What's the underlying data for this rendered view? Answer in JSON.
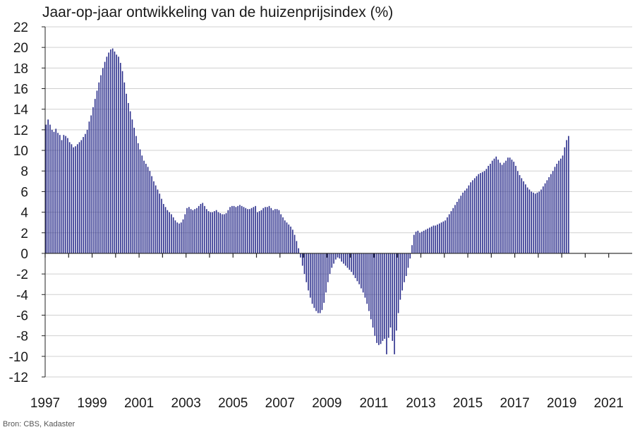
{
  "chart_data": {
    "type": "bar",
    "title": "Jaar-op-jaar ontwikkeling van de huizenprijsindex (%)",
    "source": "Bron: CBS, Kadaster",
    "xlabel": "",
    "ylabel": "",
    "ylim": [
      -12,
      22
    ],
    "yticks": [
      -12,
      -10,
      -8,
      -6,
      -4,
      -2,
      0,
      2,
      4,
      6,
      8,
      10,
      12,
      14,
      16,
      18,
      20,
      22
    ],
    "xlim": [
      "1997-01",
      "2021-12"
    ],
    "xticks": [
      "1997",
      "1999",
      "2001",
      "2003",
      "2005",
      "2007",
      "2009",
      "2011",
      "2013",
      "2015",
      "2017",
      "2019",
      "2021"
    ],
    "grid": "horizontal",
    "bar_color": "#2b2e8c",
    "frequency": "monthly",
    "start": "1997-01",
    "values": [
      12.5,
      13.0,
      12.5,
      12.0,
      11.8,
      12.1,
      11.7,
      11.5,
      11.0,
      11.5,
      11.4,
      11.2,
      10.8,
      10.6,
      10.3,
      10.4,
      10.6,
      10.8,
      11.0,
      11.3,
      11.6,
      12.0,
      12.8,
      13.4,
      14.2,
      15.0,
      15.8,
      16.6,
      17.3,
      18.0,
      18.6,
      19.1,
      19.5,
      19.8,
      19.9,
      19.6,
      19.3,
      19.1,
      18.5,
      17.7,
      16.6,
      15.5,
      14.6,
      13.8,
      13.0,
      12.2,
      11.4,
      10.7,
      10.1,
      9.5,
      9.0,
      8.7,
      8.4,
      8.0,
      7.5,
      7.0,
      6.6,
      6.2,
      5.8,
      5.3,
      4.8,
      4.5,
      4.2,
      4.0,
      3.8,
      3.5,
      3.2,
      3.0,
      2.9,
      3.0,
      3.3,
      3.8,
      4.4,
      4.5,
      4.3,
      4.2,
      4.3,
      4.4,
      4.6,
      4.8,
      4.9,
      4.6,
      4.3,
      4.1,
      4.0,
      4.0,
      4.1,
      4.2,
      4.0,
      3.9,
      3.8,
      3.8,
      3.9,
      4.2,
      4.5,
      4.6,
      4.6,
      4.5,
      4.6,
      4.7,
      4.6,
      4.5,
      4.4,
      4.3,
      4.3,
      4.4,
      4.5,
      4.6,
      4.0,
      4.1,
      4.2,
      4.4,
      4.5,
      4.5,
      4.6,
      4.4,
      4.2,
      4.3,
      4.3,
      4.2,
      3.8,
      3.5,
      3.2,
      3.0,
      2.8,
      2.6,
      2.3,
      1.8,
      1.2,
      0.5,
      -0.4,
      -1.2,
      -2.0,
      -2.8,
      -3.6,
      -4.3,
      -4.9,
      -5.3,
      -5.6,
      -5.8,
      -5.8,
      -5.5,
      -4.8,
      -3.8,
      -2.8,
      -2.0,
      -1.4,
      -1.0,
      -0.6,
      -0.4,
      -0.5,
      -0.8,
      -1.0,
      -1.2,
      -1.4,
      -1.6,
      -1.8,
      -2.1,
      -2.4,
      -2.7,
      -3.0,
      -3.4,
      -3.8,
      -4.3,
      -4.9,
      -5.6,
      -6.4,
      -7.2,
      -8.0,
      -8.7,
      -8.9,
      -8.8,
      -8.5,
      -8.3,
      -9.8,
      -8.2,
      -7.2,
      -8.5,
      -9.8,
      -7.5,
      -5.8,
      -4.5,
      -3.6,
      -2.8,
      -2.2,
      -1.4,
      -0.5,
      0.8,
      1.8,
      2.1,
      2.2,
      2.0,
      2.1,
      2.2,
      2.3,
      2.4,
      2.5,
      2.6,
      2.7,
      2.7,
      2.8,
      2.9,
      3.0,
      3.1,
      3.2,
      3.5,
      3.8,
      4.1,
      4.4,
      4.7,
      5.0,
      5.3,
      5.6,
      5.9,
      6.1,
      6.3,
      6.6,
      6.9,
      7.1,
      7.3,
      7.5,
      7.7,
      7.8,
      7.9,
      8.0,
      8.2,
      8.5,
      8.7,
      9.0,
      9.2,
      9.4,
      9.1,
      8.8,
      8.6,
      8.8,
      9.0,
      9.3,
      9.3,
      9.1,
      8.9,
      8.5,
      8.0,
      7.6,
      7.3,
      7.0,
      6.7,
      6.4,
      6.2,
      6.0,
      5.9,
      5.8,
      5.9,
      6.0,
      6.2,
      6.5,
      6.8,
      7.1,
      7.4,
      7.7,
      8.0,
      8.4,
      8.7,
      9.0,
      9.2,
      9.5,
      10.3,
      11.0,
      11.4
    ]
  }
}
